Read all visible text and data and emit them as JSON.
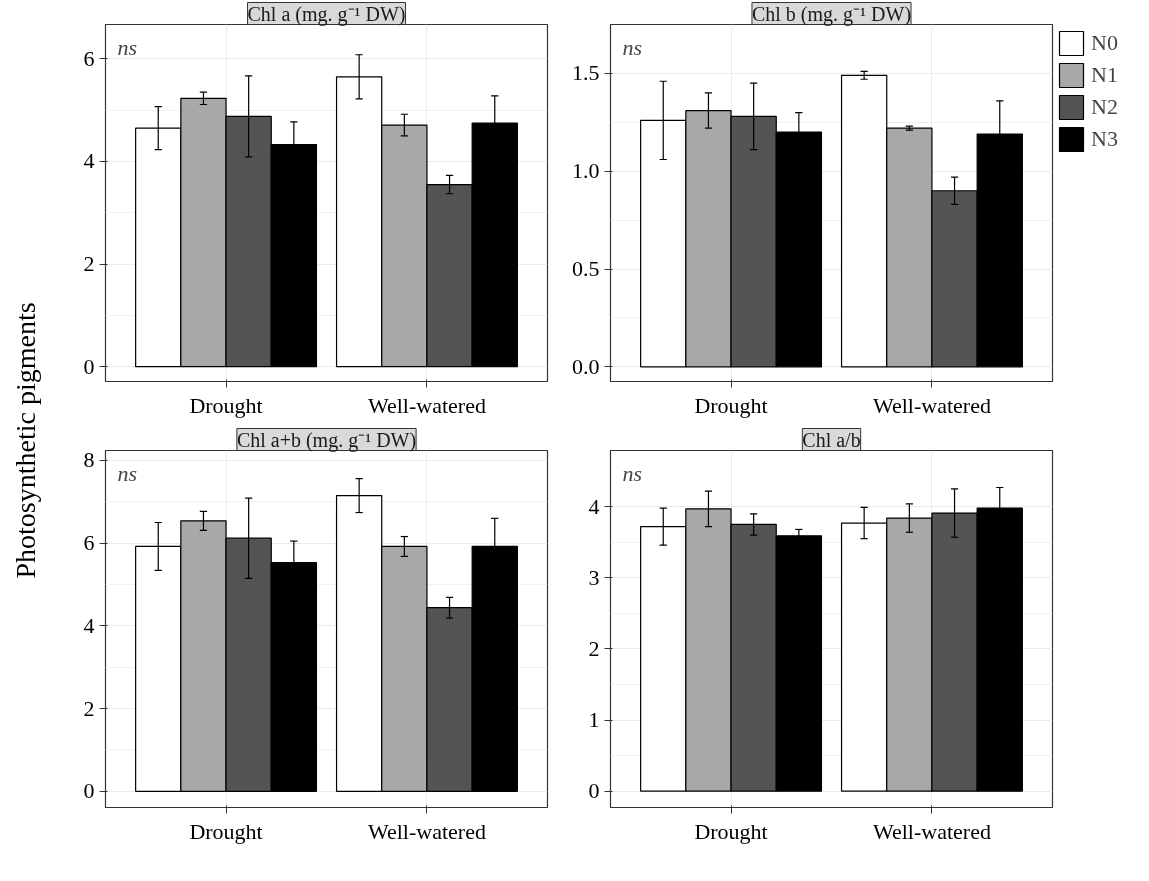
{
  "chart_data": [
    {
      "type": "bar",
      "title": "Chl a (mg. g⁻¹ DW)",
      "ylabel": "Photosynthetic pigments",
      "categories": [
        "Drought",
        "Well-watered"
      ],
      "ylim": [
        -0.29,
        6.67
      ],
      "yticks": [
        0,
        2,
        4,
        6
      ],
      "grid": true,
      "annotations": [
        "ns"
      ],
      "series": [
        {
          "color": "#ffffff",
          "values": [
            4.65,
            5.65
          ],
          "errors": [
            0.42,
            0.43
          ]
        },
        {
          "color": "#a8a8a8",
          "values": [
            5.23,
            4.71
          ],
          "errors": [
            0.12,
            0.21
          ]
        },
        {
          "color": "#545454",
          "values": [
            4.88,
            3.55
          ],
          "errors": [
            0.79,
            0.18
          ]
        },
        {
          "color": "#000000",
          "values": [
            4.33,
            4.75
          ],
          "errors": [
            0.44,
            0.53
          ]
        }
      ]
    },
    {
      "type": "bar",
      "title": "Chl b (mg. g⁻¹ DW)",
      "categories": [
        "Drought",
        "Well-watered"
      ],
      "ylim": [
        -0.075,
        1.75
      ],
      "yticks": [
        {
          "value": 0,
          "label": "0.0"
        },
        0.5,
        {
          "value": 1,
          "label": "1.0"
        },
        1.5
      ],
      "grid": true,
      "legend": "right",
      "annotations": [
        "ns"
      ],
      "series": [
        {
          "name": "N0",
          "color": "#ffffff",
          "values": [
            1.26,
            1.49
          ],
          "errors": [
            0.2,
            0.02
          ]
        },
        {
          "name": "N1",
          "color": "#a8a8a8",
          "values": [
            1.31,
            1.22
          ],
          "errors": [
            0.09,
            0.01
          ]
        },
        {
          "name": "N2",
          "color": "#545454",
          "values": [
            1.28,
            0.9
          ],
          "errors": [
            0.17,
            0.07
          ]
        },
        {
          "name": "N3",
          "color": "#000000",
          "values": [
            1.2,
            1.19
          ],
          "errors": [
            0.1,
            0.17
          ]
        }
      ]
    },
    {
      "type": "bar",
      "title": "Chl a+b (mg. g⁻¹ DW)",
      "categories": [
        "Drought",
        "Well-watered"
      ],
      "ylim": [
        -0.39,
        8.24
      ],
      "yticks": [
        0,
        2,
        4,
        6,
        8
      ],
      "grid": true,
      "annotations": [
        "ns"
      ],
      "series": [
        {
          "color": "#ffffff",
          "values": [
            5.92,
            7.15
          ],
          "errors": [
            0.58,
            0.41
          ]
        },
        {
          "color": "#a8a8a8",
          "values": [
            6.54,
            5.92
          ],
          "errors": [
            0.23,
            0.24
          ]
        },
        {
          "color": "#545454",
          "values": [
            6.12,
            4.44
          ],
          "errors": [
            0.97,
            0.25
          ]
        },
        {
          "color": "#000000",
          "values": [
            5.53,
            5.92
          ],
          "errors": [
            0.52,
            0.68
          ]
        }
      ]
    },
    {
      "type": "bar",
      "title": "Chl a/b",
      "categories": [
        "Drought",
        "Well-watered"
      ],
      "ylim": [
        -0.23,
        4.79
      ],
      "yticks": [
        0,
        1,
        2,
        3,
        4
      ],
      "grid": true,
      "annotations": [
        "ns"
      ],
      "series": [
        {
          "color": "#ffffff",
          "values": [
            3.72,
            3.77
          ],
          "errors": [
            0.26,
            0.22
          ]
        },
        {
          "color": "#a8a8a8",
          "values": [
            3.97,
            3.84
          ],
          "errors": [
            0.25,
            0.2
          ]
        },
        {
          "color": "#545454",
          "values": [
            3.75,
            3.91
          ],
          "errors": [
            0.15,
            0.34
          ]
        },
        {
          "color": "#000000",
          "values": [
            3.59,
            3.98
          ],
          "errors": [
            0.09,
            0.29
          ]
        }
      ]
    }
  ]
}
